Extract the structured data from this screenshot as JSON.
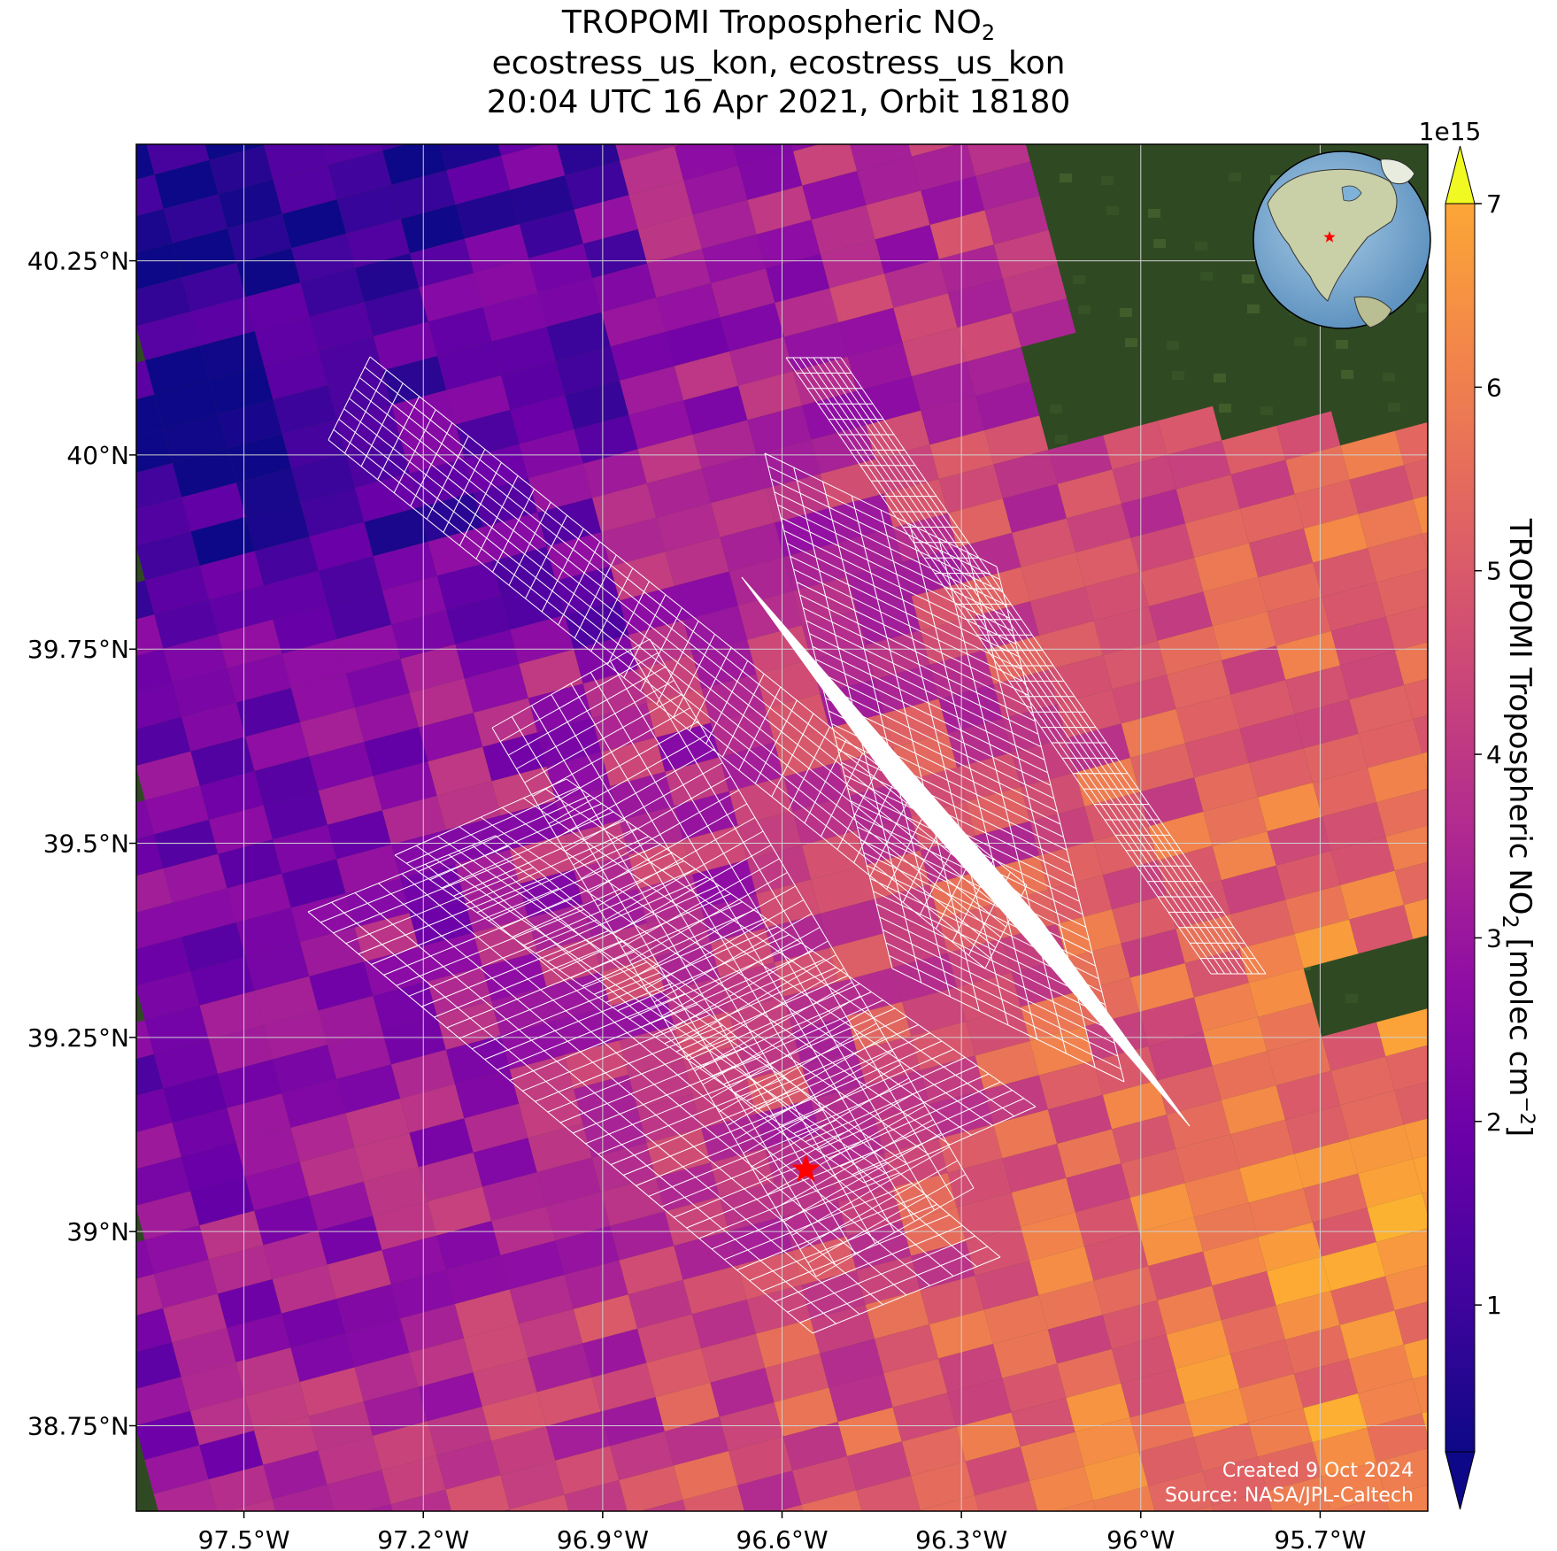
{
  "title": {
    "line1_text": "TROPOMI Tropospheric NO",
    "line1_sub": "2",
    "line2": "ecostress_us_kon, ecostress_us_kon",
    "line3": "20:04 UTC 16 Apr 2021, Orbit 18180"
  },
  "map": {
    "lon_range": [
      -97.68,
      -95.52
    ],
    "lat_range": [
      38.64,
      40.4
    ],
    "lon_ticks": [
      {
        "value": -97.5,
        "label": "97.5°W"
      },
      {
        "value": -97.2,
        "label": "97.2°W"
      },
      {
        "value": -96.9,
        "label": "96.9°W"
      },
      {
        "value": -96.6,
        "label": "96.6°W"
      },
      {
        "value": -96.3,
        "label": "96.3°W"
      },
      {
        "value": -96.0,
        "label": "96°W"
      },
      {
        "value": -95.7,
        "label": "95.7°W"
      }
    ],
    "lat_ticks": [
      {
        "value": 40.25,
        "label": "40.25°N"
      },
      {
        "value": 40.0,
        "label": "40°N"
      },
      {
        "value": 39.75,
        "label": "39.75°N"
      },
      {
        "value": 39.5,
        "label": "39.5°N"
      },
      {
        "value": 39.25,
        "label": "39.25°N"
      },
      {
        "value": 39.0,
        "label": "39°N"
      },
      {
        "value": 38.75,
        "label": "38.75°N"
      }
    ],
    "site_marker": {
      "lon": -96.56,
      "lat": 39.08,
      "color": "#ff0000"
    },
    "basemap_color": "#2f4a22",
    "gridline_color": "#d0d0d0",
    "footprint_color": "#ffffff",
    "credit_line1": "Created 9 Oct 2024",
    "credit_line2": "Source: NASA/JPL-Caltech",
    "inset_globe": {
      "ocean_color": "#7fb2d8",
      "land_color": "#c9cfa6",
      "marker_color": "#ff0000"
    }
  },
  "colorbar": {
    "label_text": "TROPOMI Tropospheric NO",
    "label_sub": "2",
    "label_units": " [molec cm",
    "label_sup": "−2",
    "label_close": "]",
    "exponent": "1e15",
    "range": [
      0.2,
      7.0
    ],
    "ticks": [
      {
        "value": 1,
        "label": "1"
      },
      {
        "value": 2,
        "label": "2"
      },
      {
        "value": 3,
        "label": "3"
      },
      {
        "value": 4,
        "label": "4"
      },
      {
        "value": 5,
        "label": "5"
      },
      {
        "value": 6,
        "label": "6"
      },
      {
        "value": 7,
        "label": "7"
      }
    ],
    "colormap": "plasma",
    "extend": "both"
  }
}
